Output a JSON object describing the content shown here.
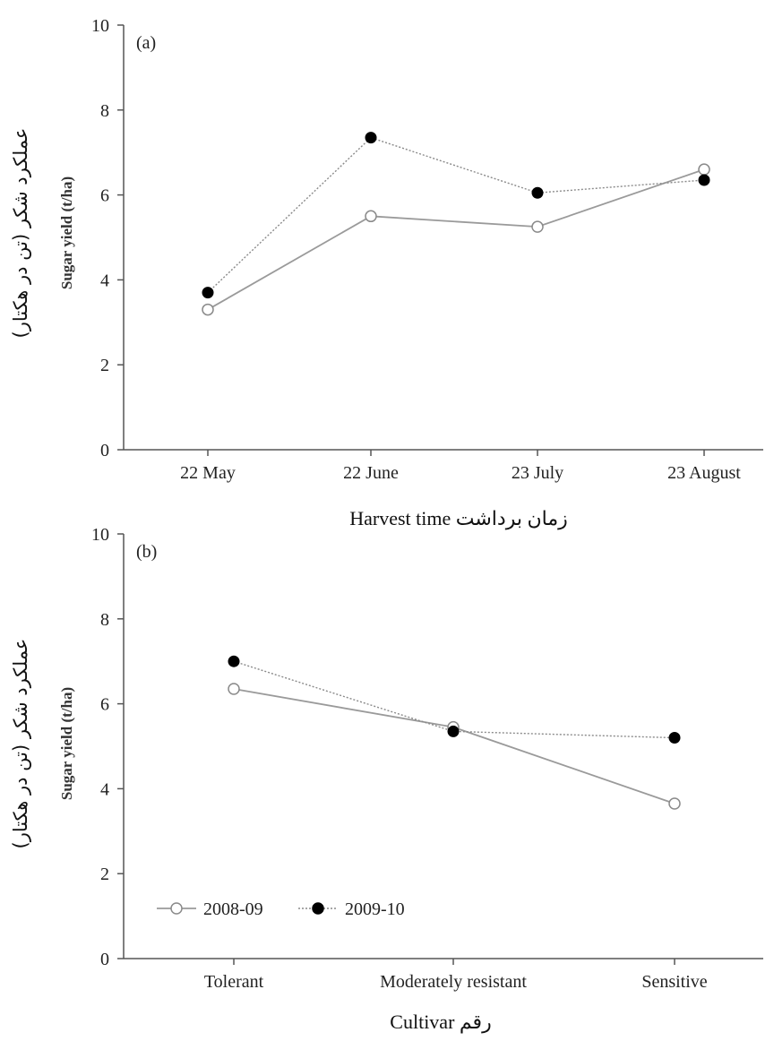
{
  "chart_data": [
    {
      "type": "line",
      "panel_label": "(a)",
      "categories": [
        "22 May",
        "22 June",
        "23 July",
        "23 August"
      ],
      "series": [
        {
          "name": "2008-09",
          "values": [
            3.3,
            5.5,
            5.25,
            6.6
          ],
          "color": "#9a9a9a",
          "line": "solid",
          "marker": "open-circle"
        },
        {
          "name": "2009-10",
          "values": [
            3.7,
            7.35,
            6.05,
            6.35
          ],
          "color": "#000000",
          "line": "dotted",
          "marker": "filled-circle"
        }
      ],
      "xlabel": "Harvest time زمان برداشت",
      "ylabel": "Sugar yield (t/ha)",
      "ylabel_fa": "عملکرد شکر (تن در هکتار)",
      "ylim": [
        0,
        10
      ],
      "yticks": [
        "0",
        "2",
        "4",
        "6",
        "8",
        "10"
      ],
      "grid": false
    },
    {
      "type": "line",
      "panel_label": "(b)",
      "categories": [
        "Tolerant",
        "Moderately resistant",
        "Sensitive"
      ],
      "series": [
        {
          "name": "2008-09",
          "values": [
            6.35,
            5.45,
            3.65
          ],
          "color": "#9a9a9a",
          "line": "solid",
          "marker": "open-circle"
        },
        {
          "name": "2009-10",
          "values": [
            7.0,
            5.35,
            5.2
          ],
          "color": "#000000",
          "line": "dotted",
          "marker": "filled-circle"
        }
      ],
      "xlabel": "Cultivar رقم",
      "ylabel": "Sugar yield (t/ha)",
      "ylabel_fa": "عملکرد شکر (تن در هکتار)",
      "ylim": [
        0,
        10
      ],
      "yticks": [
        "0",
        "2",
        "4",
        "6",
        "8",
        "10"
      ],
      "grid": false,
      "legend_placement": "bottom-left"
    }
  ]
}
